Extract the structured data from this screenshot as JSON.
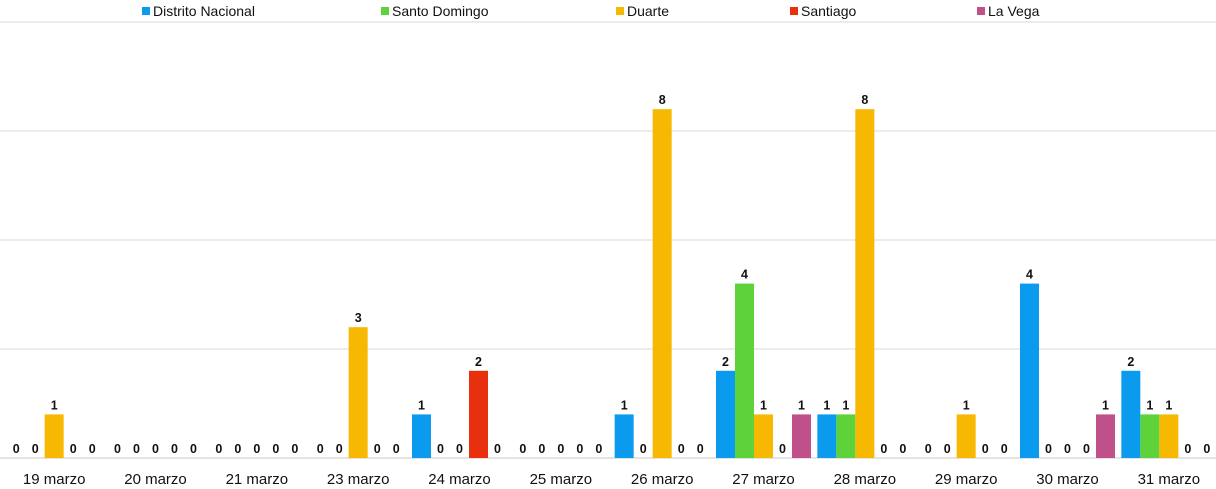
{
  "chart_data": {
    "type": "bar",
    "categories": [
      "19 marzo",
      "20 marzo",
      "21 marzo",
      "23 marzo",
      "24 marzo",
      "25 marzo",
      "26 marzo",
      "27 marzo",
      "28 marzo",
      "29 marzo",
      "30 marzo",
      "31 marzo"
    ],
    "series": [
      {
        "name": "Distrito Nacional",
        "color": "#0A9BEF",
        "values": [
          0,
          0,
          0,
          0,
          1,
          0,
          1,
          2,
          1,
          0,
          4,
          2
        ]
      },
      {
        "name": "Santo Domingo",
        "color": "#5ED23A",
        "values": [
          0,
          0,
          0,
          0,
          0,
          0,
          0,
          4,
          1,
          0,
          0,
          1
        ]
      },
      {
        "name": "Duarte",
        "color": "#F6B800",
        "values": [
          1,
          0,
          0,
          3,
          0,
          0,
          8,
          1,
          8,
          1,
          0,
          1
        ]
      },
      {
        "name": "Santiago",
        "color": "#E8300E",
        "values": [
          0,
          0,
          0,
          0,
          2,
          0,
          0,
          0,
          0,
          0,
          0,
          0
        ]
      },
      {
        "name": "La Vega",
        "color": "#C0508A",
        "values": [
          0,
          0,
          0,
          0,
          0,
          0,
          0,
          1,
          0,
          0,
          1,
          0
        ]
      }
    ],
    "ylim": [
      0,
      10
    ],
    "grid": true,
    "legend_position": "top",
    "data_labels": true,
    "title": "",
    "xlabel": "",
    "ylabel": ""
  }
}
